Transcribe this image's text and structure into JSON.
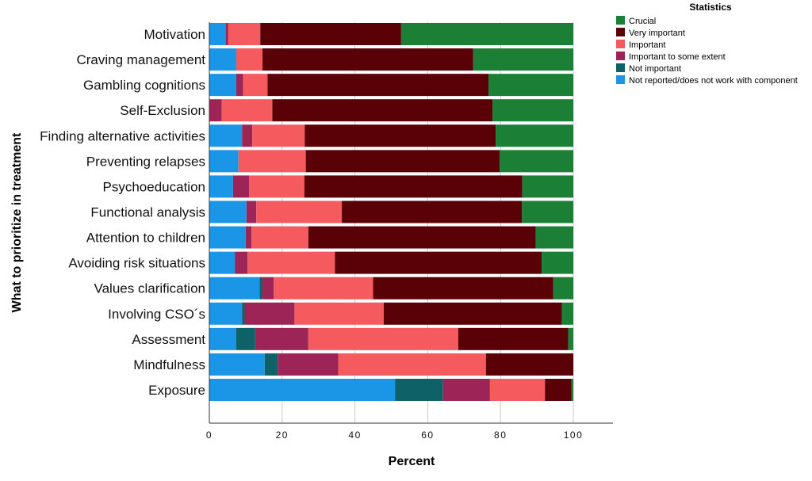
{
  "chart_data": {
    "type": "bar",
    "orientation": "horizontal",
    "stacked": true,
    "title": "",
    "xlabel": "Percent",
    "ylabel": "What to prioritize in treatment",
    "xlim": [
      0,
      111
    ],
    "xticks": [
      0,
      20,
      40,
      60,
      80,
      100
    ],
    "grid": true,
    "legend_title": "Statistics",
    "legend_position": "top-right",
    "categories": [
      "Motivation",
      "Craving management",
      "Gambling cognitions",
      "Self-Exclusion",
      "Finding alternative activities",
      "Preventing relapses",
      "Psychoeducation",
      "Functional analysis",
      "Attention to children",
      "Avoiding risk situations",
      "Values clarification",
      "Involving CSO´s",
      "Assessment",
      "Mindfulness",
      "Exposure"
    ],
    "series": [
      {
        "name": "Not reported/does not work with component",
        "color": "#1b95e6",
        "values": [
          4.5,
          7.4,
          7.4,
          0,
          9.0,
          8.0,
          6.5,
          10.2,
          10.0,
          7.0,
          13.8,
          9.0,
          7.4,
          15.2,
          51.0
        ]
      },
      {
        "name": "Not important",
        "color": "#0e6267",
        "values": [
          0,
          0,
          0,
          0,
          0,
          0,
          0,
          0,
          0,
          0,
          0.7,
          0.7,
          5.2,
          3.6,
          13.2
        ]
      },
      {
        "name": "Important to some extent",
        "color": "#9c2456",
        "values": [
          0.7,
          0,
          1.9,
          3.4,
          2.8,
          0,
          4.4,
          2.7,
          1.6,
          3.5,
          3.2,
          13.7,
          14.6,
          16.6,
          12.9
        ]
      },
      {
        "name": "Important",
        "color": "#f55a5f",
        "values": [
          8.8,
          7.2,
          6.7,
          13.9,
          14.4,
          18.5,
          15.2,
          23.5,
          15.6,
          24.0,
          27.3,
          24.5,
          41.2,
          40.6,
          15.1
        ]
      },
      {
        "name": "Very important",
        "color": "#5a0107",
        "values": [
          38.7,
          57.9,
          60.7,
          60.5,
          52.5,
          53.3,
          59.9,
          49.5,
          62.5,
          56.8,
          49.5,
          49.0,
          30.2,
          24.0,
          7.3
        ]
      },
      {
        "name": "Crucial",
        "color": "#1b7f36",
        "values": [
          47.3,
          27.5,
          23.3,
          22.2,
          21.3,
          20.2,
          14.0,
          14.1,
          10.3,
          8.7,
          5.5,
          3.1,
          1.4,
          0,
          0.5
        ]
      }
    ],
    "legend_order": [
      "Crucial",
      "Very important",
      "Important",
      "Important to some extent",
      "Not important",
      "Not reported/does not work with component"
    ]
  }
}
